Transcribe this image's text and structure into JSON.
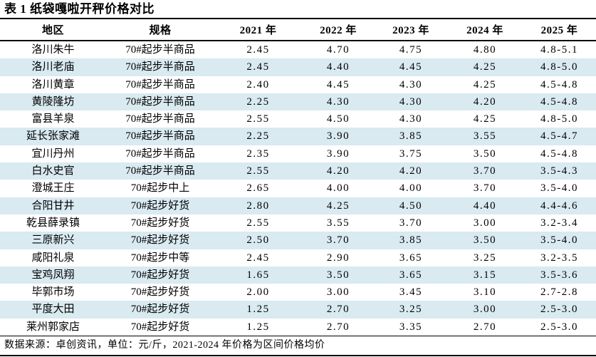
{
  "page": {
    "title": "表 1 纸袋嘎啦开秤价格对比",
    "footer_note": "数据来源：卓创资讯，单位：元/斤，2021-2024 年价格为区间价格均价"
  },
  "table": {
    "columns": [
      "地区",
      "规格",
      "2021 年",
      "2022 年",
      "2023 年",
      "2024 年",
      "2025 年"
    ],
    "rows": [
      [
        "洛川朱牛",
        "70#起步半商品",
        "2.45",
        "4.70",
        "4.75",
        "4.80",
        "4.8-5.1"
      ],
      [
        "洛川老庙",
        "70#起步半商品",
        "2.45",
        "4.40",
        "4.45",
        "4.25",
        "4.8-5.0"
      ],
      [
        "洛川黄章",
        "70#起步半商品",
        "2.40",
        "4.45",
        "4.30",
        "4.25",
        "4.5-4.8"
      ],
      [
        "黄陵隆坊",
        "70#起步半商品",
        "2.25",
        "4.30",
        "4.30",
        "4.20",
        "4.5-4.8"
      ],
      [
        "富县羊泉",
        "70#起步半商品",
        "2.55",
        "4.50",
        "4.30",
        "4.25",
        "4.8-5.0"
      ],
      [
        "延长张家滩",
        "70#起步半商品",
        "2.25",
        "3.90",
        "3.85",
        "3.55",
        "4.5-4.7"
      ],
      [
        "宜川丹州",
        "70#起步半商品",
        "2.35",
        "3.90",
        "3.75",
        "3.50",
        "4.5-4.8"
      ],
      [
        "白水史官",
        "70#起步半商品",
        "2.55",
        "4.20",
        "4.20",
        "3.70",
        "3.5-4.3"
      ],
      [
        "澄城王庄",
        "70#起步中上",
        "2.65",
        "4.00",
        "4.00",
        "3.70",
        "3.5-4.0"
      ],
      [
        "合阳甘井",
        "70#起步好货",
        "2.80",
        "4.25",
        "4.50",
        "4.40",
        "4.4-4.6"
      ],
      [
        "乾县薛录镇",
        "70#起步好货",
        "2.55",
        "3.55",
        "3.70",
        "3.00",
        "3.2-3.4"
      ],
      [
        "三原新兴",
        "70#起步好货",
        "2.50",
        "3.70",
        "3.85",
        "3.50",
        "3.5-4.0"
      ],
      [
        "咸阳礼泉",
        "70#起步中等",
        "2.45",
        "2.90",
        "3.65",
        "3.25",
        "3.2-3.5"
      ],
      [
        "宝鸡凤翔",
        "70#起步好货",
        "1.65",
        "3.50",
        "3.65",
        "3.15",
        "3.5-3.6"
      ],
      [
        "毕郭市场",
        "70#起步好货",
        "2.00",
        "3.00",
        "3.45",
        "3.10",
        "2.7-2.8"
      ],
      [
        "平度大田",
        "70#起步好货",
        "1.25",
        "2.70",
        "3.25",
        "3.00",
        "2.5-3.0"
      ],
      [
        "莱州郭家店",
        "70#起步好货",
        "1.25",
        "2.70",
        "3.35",
        "2.70",
        "2.5-3.0"
      ]
    ]
  },
  "colors": {
    "stripe": "#d9eaf1",
    "border": "#000000",
    "text": "#000000",
    "background": "#ffffff"
  }
}
